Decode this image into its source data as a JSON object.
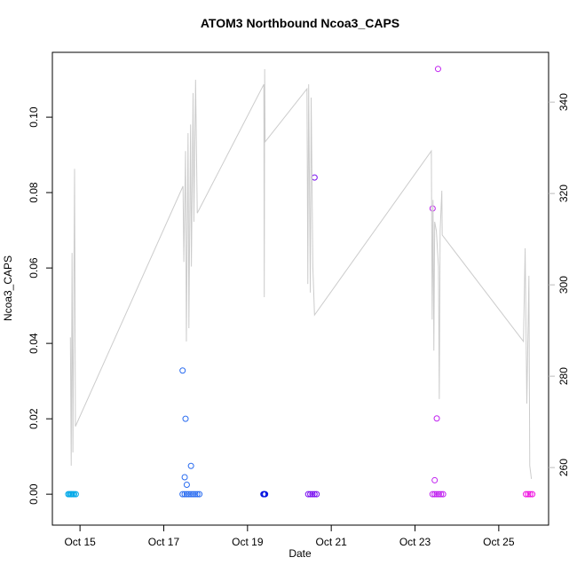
{
  "chart_data": {
    "type": "scatter",
    "title": "ATOM3 Northbound Ncoa3_CAPS",
    "xlabel": "Date",
    "ylabel": "Ncoa3_CAPS",
    "xlim": [
      14.34,
      26.19
    ],
    "xticks": [
      {
        "value": 15,
        "label": "Oct 15"
      },
      {
        "value": 17,
        "label": "Oct 17"
      },
      {
        "value": 19,
        "label": "Oct 19"
      },
      {
        "value": 21,
        "label": "Oct 21"
      },
      {
        "value": 23,
        "label": "Oct 23"
      },
      {
        "value": 25,
        "label": "Oct 25"
      }
    ],
    "ylim": [
      -0.0082,
      0.1172
    ],
    "yticks": [
      {
        "value": 0,
        "label": "0.00"
      },
      0.02,
      0.04,
      0.06,
      0.08,
      {
        "value": 0.1,
        "label": "0.10"
      }
    ],
    "y2lim": [
      247.4,
      350.9
    ],
    "y2ticks": [
      260,
      280,
      300,
      320,
      340
    ],
    "y2color": "#bbbbbb",
    "series": [
      {
        "color": "#00a8e8",
        "x": [
          14.72,
          14.75,
          14.78,
          14.8,
          14.83,
          14.86,
          14.9
        ],
        "values": [
          0,
          0,
          0,
          0,
          0,
          0,
          0
        ]
      },
      {
        "color": "#2a6cf0",
        "x": [
          17.45,
          17.5,
          17.52,
          17.55,
          17.65,
          17.45,
          17.5,
          17.55,
          17.6,
          17.65,
          17.7,
          17.75,
          17.8,
          17.85
        ],
        "values": [
          0.0328,
          0.0045,
          0.02,
          0.0025,
          0.0075,
          0,
          0,
          0,
          0,
          0,
          0,
          0,
          0,
          0
        ]
      },
      {
        "color": "#0010e0",
        "x": [
          19.38,
          19.4,
          19.42
        ],
        "values": [
          0,
          0,
          0
        ]
      },
      {
        "color": "#7a10f0",
        "x": [
          20.6,
          20.45,
          20.5,
          20.55,
          20.6,
          20.65
        ],
        "values": [
          0.084,
          0,
          0,
          0,
          0,
          0
        ]
      },
      {
        "color": "#c020f0",
        "x": [
          23.42,
          23.47,
          23.52,
          23.55,
          23.42,
          23.47,
          23.52,
          23.57,
          23.62,
          23.67
        ],
        "values": [
          0.0758,
          0.0037,
          0.0201,
          0.1128,
          0,
          0,
          0,
          0,
          0,
          0
        ]
      },
      {
        "color": "#f010e0",
        "x": [
          25.65,
          25.7,
          25.75,
          25.8
        ],
        "values": [
          0,
          0,
          0,
          0
        ]
      },
      {
        "type": "line",
        "axis": "y2",
        "color": "#cccccc",
        "x": [
          14.77,
          14.79,
          14.81,
          14.83,
          14.87,
          14.89,
          17.46,
          17.48,
          17.52,
          17.54,
          17.58,
          17.6,
          17.64,
          17.66,
          17.7,
          17.72,
          17.76,
          17.8,
          19.39,
          19.4,
          19.41,
          19.42,
          20.42,
          20.44,
          20.46,
          20.5,
          20.52,
          20.56,
          20.6,
          23.39,
          23.41,
          23.43,
          23.45,
          23.47,
          23.51,
          23.56,
          23.58,
          23.6,
          23.64,
          23.65,
          25.59,
          25.63,
          25.67,
          25.72,
          25.74,
          25.78
        ],
        "values": [
          288.5,
          260.4,
          307,
          263.3,
          325.4,
          269,
          321.6,
          305,
          329.3,
          287.6,
          333.2,
          290.5,
          335.1,
          304,
          342,
          313.8,
          344.9,
          315.7,
          343.9,
          297.3,
          347.2,
          331.3,
          342.9,
          300.2,
          343.9,
          298.3,
          341,
          304,
          293.4,
          329.3,
          292.4,
          318.6,
          285.6,
          313.8,
          311.8,
          304,
          275,
          311.8,
          320.6,
          310.9,
          287.6,
          308,
          274,
          302,
          260.4,
          257.5
        ]
      }
    ]
  }
}
